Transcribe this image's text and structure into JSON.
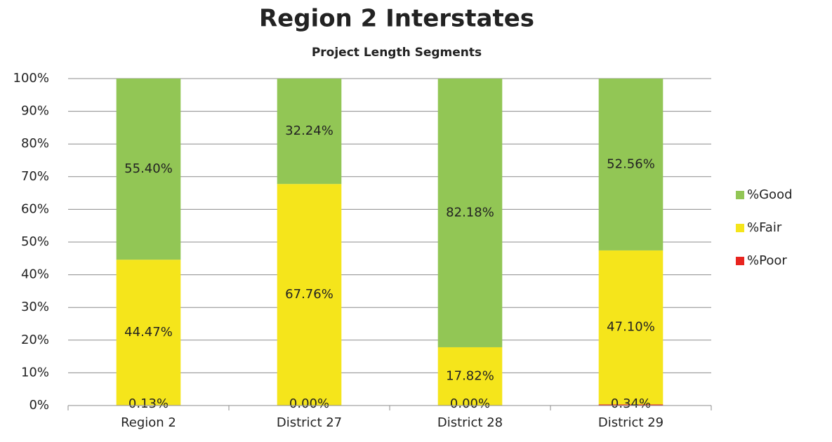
{
  "chart_data": {
    "type": "stacked_bar",
    "title": "Region 2 Interstates",
    "subtitle": "Project Length Segments",
    "categories": [
      "Region 2",
      "District 27",
      "District 28",
      "District 29"
    ],
    "series": [
      {
        "name": "%Poor",
        "color": "#e8241f",
        "values": [
          0.13,
          0,
          0,
          0.34
        ],
        "value_labels": [
          "0.13%",
          "0.00%",
          "0.00%",
          "0.34%"
        ]
      },
      {
        "name": "%Fair",
        "color": "#f5e51b",
        "values": [
          44.47,
          67.76,
          17.82,
          47.1
        ],
        "value_labels": [
          "44.47%",
          "67.76%",
          "17.82%",
          "47.10%"
        ]
      },
      {
        "name": "%Good",
        "color": "#92c655",
        "values": [
          55.4,
          32.24,
          82.18,
          52.56
        ],
        "value_labels": [
          "55.40%",
          "32.24%",
          "82.18%",
          "52.56%"
        ]
      }
    ],
    "ylim": [
      0,
      100
    ],
    "yticks": [
      {
        "value": 0,
        "label": "0%"
      },
      {
        "value": 10,
        "label": "10%"
      },
      {
        "value": 20,
        "label": "20%"
      },
      {
        "value": 30,
        "label": "30%"
      },
      {
        "value": 40,
        "label": "40%"
      },
      {
        "value": 50,
        "label": "50%"
      },
      {
        "value": 60,
        "label": "60%"
      },
      {
        "value": 70,
        "label": "70%"
      },
      {
        "value": 80,
        "label": "80%"
      },
      {
        "value": 90,
        "label": "90%"
      },
      {
        "value": 100,
        "label": "100%"
      }
    ],
    "grid": true,
    "legend": "right"
  }
}
